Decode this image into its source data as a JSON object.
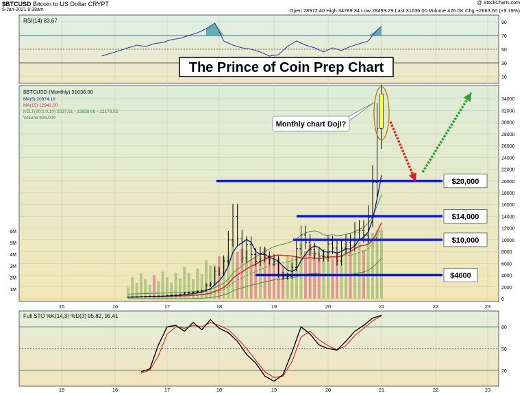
{
  "header": {
    "symbol": "$BTCUSD",
    "name": "Bitcoin to US Dollar",
    "exchange": "CRYPT",
    "date": "5-Jan-2021 9:38am",
    "copyright": "@ StockCharts.com",
    "quote": "Open 28972.40  High 34789.34  Low 28493.29  Last 31636.00  Volume 426.0K  Chg +2663.60 (+9.19%)"
  },
  "annotations": {
    "title": "The Prince of Coin Prep Chart",
    "doji_callout": "Monthly chart Doji?",
    "level_20000": "$20,000",
    "level_14000": "$14,000",
    "level_10000": "$10,000",
    "level_4000": "$4000"
  },
  "legend": {
    "main": "$BTCUSD (Monthly) 31636.00",
    "ma5": "MA(5) 20974.10",
    "ma15": "MA(15) 12942.50",
    "kelt": "KELT(20,2.0,10) 5537.61 - 13858.08 - 22178.55",
    "volume": "Volume 426,009",
    "rsi": "RSI(14) 83.67",
    "sto": "Full STO %K(14,3) %D(3) 95.82, 95.41"
  },
  "colors": {
    "price_bg_top": "#dcecd9",
    "price_bg_bottom": "#f2e6b8",
    "rsi_fill": "#4f9fae",
    "ma5": "#1a237e",
    "ma15": "#d32f2f",
    "kelt": "#3a8a3a",
    "level_line": "#0a18d8",
    "arrow_down": "#e02020",
    "arrow_up": "#28a028",
    "doji_ring": "#b8860b",
    "volume_up": "#a9bf7a",
    "volume_down": "#d98a8a"
  },
  "chart_data": [
    {
      "type": "line",
      "panel": "RSI(14)",
      "y_ticks": [
        90,
        70,
        50,
        30,
        10
      ],
      "ylim": [
        0,
        100
      ],
      "reference_lines": [
        70,
        30
      ],
      "dates": [
        "2015-10",
        "2015-12",
        "2016-02",
        "2016-04",
        "2016-06",
        "2016-08",
        "2016-10",
        "2016-12",
        "2017-02",
        "2017-04",
        "2017-06",
        "2017-08",
        "2017-10",
        "2017-12",
        "2018-02",
        "2018-04",
        "2018-06",
        "2018-08",
        "2018-10",
        "2018-12",
        "2019-02",
        "2019-04",
        "2019-06",
        "2019-08",
        "2019-10",
        "2019-12",
        "2020-02",
        "2020-04",
        "2020-06",
        "2020-08",
        "2020-10",
        "2020-12",
        "2021-01"
      ],
      "values": [
        40,
        44,
        48,
        52,
        56,
        54,
        58,
        60,
        64,
        66,
        70,
        74,
        80,
        88,
        62,
        56,
        52,
        50,
        46,
        40,
        42,
        54,
        62,
        56,
        52,
        46,
        52,
        48,
        54,
        58,
        62,
        78,
        83.67
      ]
    },
    {
      "type": "candlestick",
      "panel": "$BTCUSD (Monthly)",
      "y_ticks": [
        34000,
        32000,
        30000,
        28000,
        26000,
        24000,
        22000,
        20000,
        18000,
        16000,
        14000,
        12000,
        10000,
        8000,
        6000,
        4000,
        2000,
        0
      ],
      "ylim": [
        0,
        36000
      ],
      "x_tick_labels": [
        "15",
        "16",
        "17",
        "18",
        "19",
        "20",
        "21",
        "22",
        "23"
      ],
      "volume_axis_labels": [
        "6M",
        "5M",
        "4M",
        "3M",
        "2M",
        "1M"
      ],
      "close": [
        250,
        300,
        330,
        360,
        380,
        430,
        420,
        440,
        450,
        530,
        600,
        620,
        710,
        970,
        1000,
        1050,
        1200,
        1350,
        2300,
        2500,
        4700,
        4350,
        6400,
        10000,
        14000,
        10200,
        6900,
        9200,
        7500,
        6300,
        7700,
        7000,
        6600,
        6300,
        4000,
        3700,
        3800,
        5300,
        8500,
        10800,
        9600,
        8300,
        7600,
        7200,
        7200,
        9300,
        8600,
        6400,
        8600,
        9500,
        9100,
        11300,
        11600,
        10800,
        13800,
        19700,
        28900,
        31636
      ],
      "levels": [
        20000,
        14000,
        10000,
        4000
      ],
      "last": 31636.0
    },
    {
      "type": "line",
      "panel": "Full STO %K(14,3) %D(3)",
      "y_ticks": [
        80,
        50,
        20
      ],
      "ylim": [
        0,
        100
      ],
      "reference_lines": [
        80,
        50,
        20
      ],
      "dates": [
        "2016-07",
        "2016-09",
        "2016-11",
        "2017-01",
        "2017-03",
        "2017-05",
        "2017-07",
        "2017-09",
        "2017-11",
        "2018-01",
        "2018-03",
        "2018-05",
        "2018-07",
        "2018-09",
        "2018-11",
        "2019-01",
        "2019-03",
        "2019-05",
        "2019-07",
        "2019-09",
        "2019-11",
        "2020-01",
        "2020-03",
        "2020-05",
        "2020-07",
        "2020-09",
        "2020-11",
        "2021-01"
      ],
      "series": [
        {
          "values": [
            18,
            22,
            55,
            80,
            82,
            74,
            86,
            76,
            90,
            78,
            72,
            60,
            42,
            30,
            12,
            5,
            14,
            45,
            80,
            70,
            55,
            50,
            48,
            60,
            74,
            82,
            92,
            95.82
          ]
        },
        {
          "values": [
            16,
            20,
            40,
            70,
            80,
            78,
            82,
            80,
            86,
            82,
            76,
            64,
            50,
            34,
            18,
            10,
            12,
            32,
            66,
            74,
            62,
            54,
            48,
            54,
            68,
            78,
            88,
            95.41
          ]
        }
      ]
    }
  ]
}
